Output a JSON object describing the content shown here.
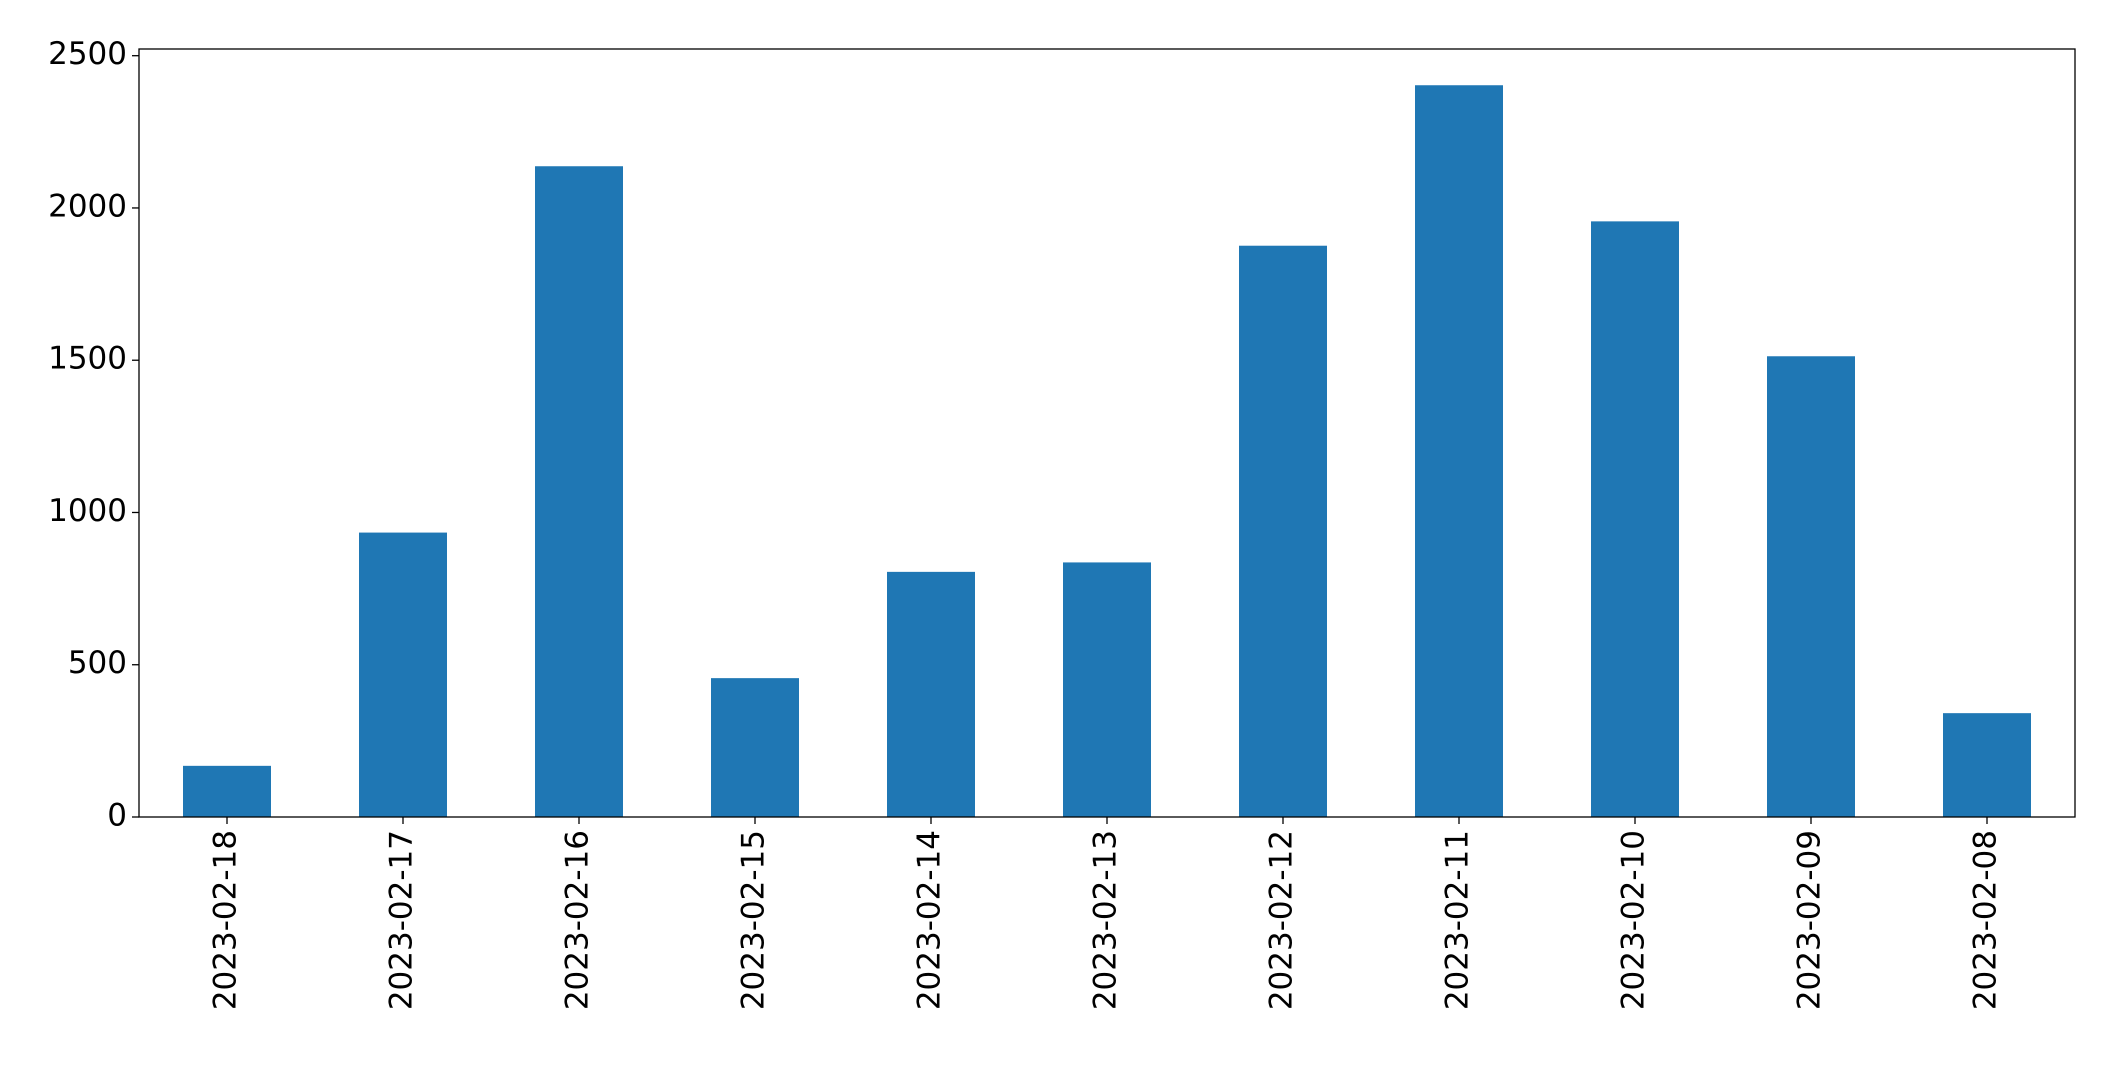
{
  "chart_data": {
    "type": "bar",
    "categories": [
      "2023-02-18",
      "2023-02-17",
      "2023-02-16",
      "2023-02-15",
      "2023-02-14",
      "2023-02-13",
      "2023-02-12",
      "2023-02-11",
      "2023-02-10",
      "2023-02-09",
      "2023-02-08"
    ],
    "values": [
      168,
      934,
      2137,
      456,
      805,
      836,
      1876,
      2403,
      1956,
      1513,
      341
    ],
    "color": "#1f77b4",
    "ylim": [
      0,
      2522
    ],
    "yticks": [
      0,
      500,
      1000,
      1500,
      2000,
      2500
    ],
    "grid": false
  }
}
